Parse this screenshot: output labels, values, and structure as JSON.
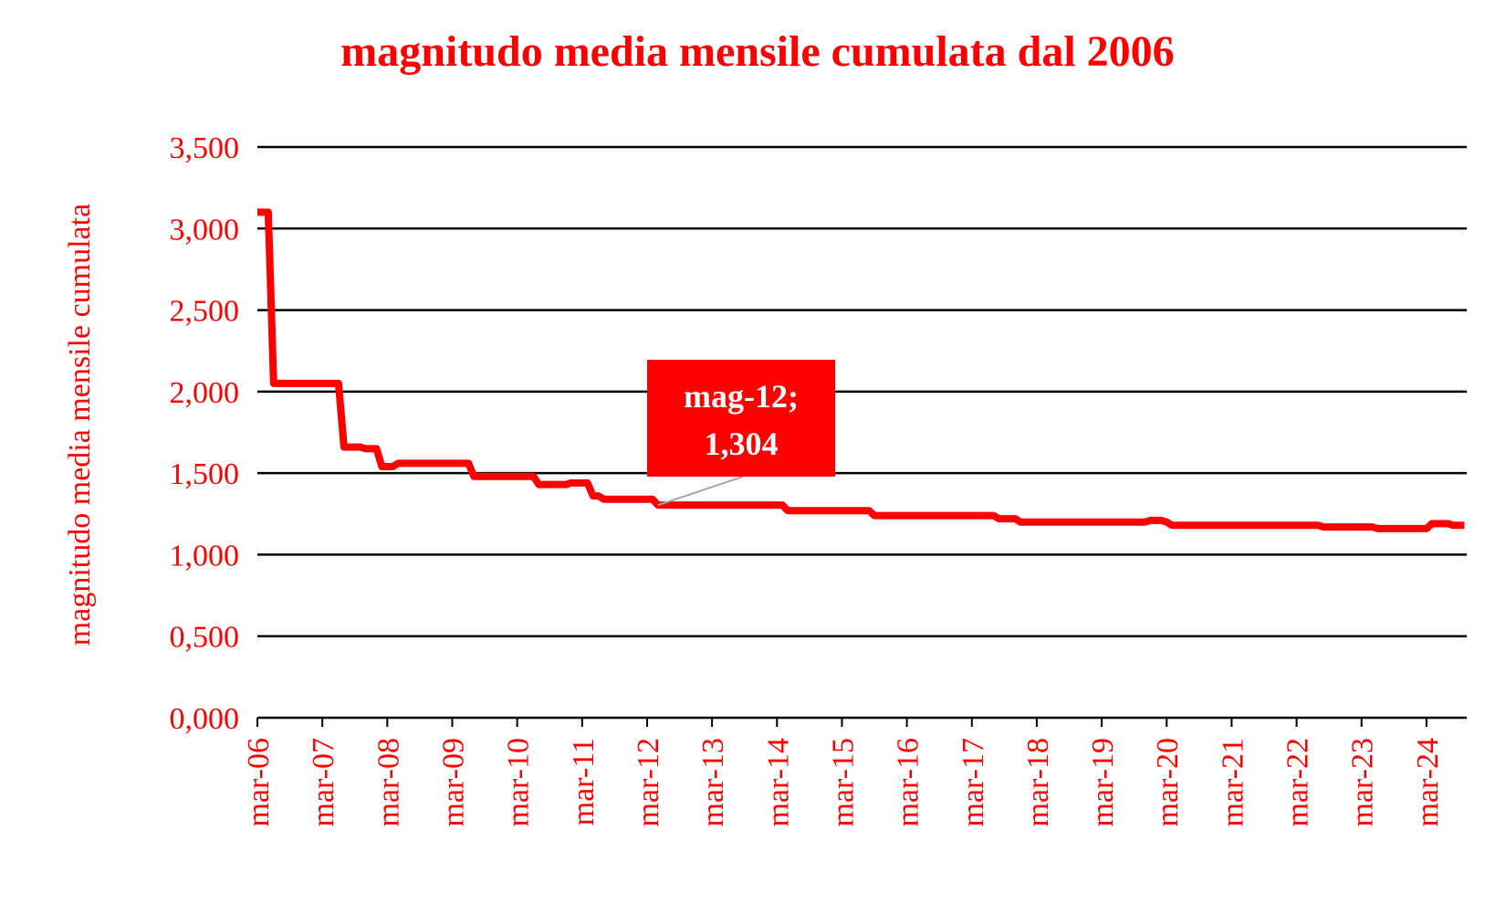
{
  "chart_data": {
    "type": "line",
    "title": "magnitudo media mensile cumulata dal 2006",
    "y_label": "magnitudo media mensile cumulata",
    "color": "#ff0000",
    "grid": true,
    "ylim": [
      0,
      3.5
    ],
    "yticks": [
      {
        "value": 0,
        "label": "0,000"
      },
      {
        "value": 0.5,
        "label": "0,500"
      },
      {
        "value": 1,
        "label": "1,000"
      },
      {
        "value": 1.5,
        "label": "1,500"
      },
      {
        "value": 2,
        "label": "2,000"
      },
      {
        "value": 2.5,
        "label": "2,500"
      },
      {
        "value": 3,
        "label": "3,000"
      },
      {
        "value": 3.5,
        "label": "3,500"
      }
    ],
    "categories": [
      "mar-06",
      null,
      null,
      null,
      null,
      null,
      null,
      null,
      null,
      null,
      null,
      null,
      "mar-07",
      null,
      null,
      null,
      null,
      null,
      null,
      null,
      null,
      null,
      null,
      null,
      "mar-08",
      null,
      null,
      null,
      null,
      null,
      null,
      null,
      null,
      null,
      null,
      null,
      "mar-09",
      null,
      null,
      null,
      null,
      null,
      null,
      null,
      null,
      null,
      null,
      null,
      "mar-10",
      null,
      null,
      null,
      null,
      null,
      null,
      null,
      null,
      null,
      null,
      null,
      "mar-11",
      null,
      null,
      null,
      null,
      null,
      null,
      null,
      null,
      null,
      null,
      null,
      "mar-12",
      null,
      null,
      null,
      null,
      null,
      null,
      null,
      null,
      null,
      null,
      null,
      "mar-13",
      null,
      null,
      null,
      null,
      null,
      null,
      null,
      null,
      null,
      null,
      null,
      "mar-14",
      null,
      null,
      null,
      null,
      null,
      null,
      null,
      null,
      null,
      null,
      null,
      "mar-15",
      null,
      null,
      null,
      null,
      null,
      null,
      null,
      null,
      null,
      null,
      null,
      "mar-16",
      null,
      null,
      null,
      null,
      null,
      null,
      null,
      null,
      null,
      null,
      null,
      "mar-17",
      null,
      null,
      null,
      null,
      null,
      null,
      null,
      null,
      null,
      null,
      null,
      "mar-18",
      null,
      null,
      null,
      null,
      null,
      null,
      null,
      null,
      null,
      null,
      null,
      "mar-19",
      null,
      null,
      null,
      null,
      null,
      null,
      null,
      null,
      null,
      null,
      null,
      "mar-20",
      null,
      null,
      null,
      null,
      null,
      null,
      null,
      null,
      null,
      null,
      null,
      "mar-21",
      null,
      null,
      null,
      null,
      null,
      null,
      null,
      null,
      null,
      null,
      null,
      "mar-22",
      null,
      null,
      null,
      null,
      null,
      null,
      null,
      null,
      null,
      null,
      null,
      "mar-23",
      null,
      null,
      null,
      null,
      null,
      null,
      null,
      null,
      null,
      null,
      null,
      "mar-24",
      null,
      null,
      null,
      null,
      null,
      null,
      null
    ],
    "values": [
      3.1,
      3.1,
      3.1,
      2.05,
      2.05,
      2.05,
      2.05,
      2.05,
      2.05,
      2.05,
      2.05,
      2.05,
      2.05,
      2.05,
      2.05,
      2.05,
      1.66,
      1.66,
      1.66,
      1.66,
      1.65,
      1.65,
      1.65,
      1.54,
      1.54,
      1.54,
      1.56,
      1.56,
      1.56,
      1.56,
      1.56,
      1.56,
      1.56,
      1.56,
      1.56,
      1.56,
      1.56,
      1.56,
      1.56,
      1.56,
      1.48,
      1.48,
      1.48,
      1.48,
      1.48,
      1.48,
      1.48,
      1.48,
      1.48,
      1.48,
      1.48,
      1.48,
      1.43,
      1.43,
      1.43,
      1.43,
      1.43,
      1.43,
      1.44,
      1.44,
      1.44,
      1.44,
      1.36,
      1.36,
      1.34,
      1.34,
      1.34,
      1.34,
      1.34,
      1.34,
      1.34,
      1.34,
      1.34,
      1.34,
      1.304,
      1.304,
      1.304,
      1.304,
      1.304,
      1.304,
      1.304,
      1.304,
      1.304,
      1.304,
      1.304,
      1.304,
      1.304,
      1.304,
      1.304,
      1.304,
      1.304,
      1.304,
      1.304,
      1.304,
      1.304,
      1.304,
      1.304,
      1.304,
      1.27,
      1.27,
      1.27,
      1.27,
      1.27,
      1.27,
      1.27,
      1.27,
      1.27,
      1.27,
      1.27,
      1.27,
      1.27,
      1.27,
      1.27,
      1.27,
      1.24,
      1.24,
      1.24,
      1.24,
      1.24,
      1.24,
      1.24,
      1.24,
      1.24,
      1.24,
      1.24,
      1.24,
      1.24,
      1.24,
      1.24,
      1.24,
      1.24,
      1.24,
      1.24,
      1.24,
      1.24,
      1.24,
      1.24,
      1.22,
      1.22,
      1.22,
      1.22,
      1.2,
      1.2,
      1.2,
      1.2,
      1.2,
      1.2,
      1.2,
      1.2,
      1.2,
      1.2,
      1.2,
      1.2,
      1.2,
      1.2,
      1.2,
      1.2,
      1.2,
      1.2,
      1.2,
      1.2,
      1.2,
      1.2,
      1.2,
      1.2,
      1.21,
      1.21,
      1.21,
      1.2,
      1.18,
      1.18,
      1.18,
      1.18,
      1.18,
      1.18,
      1.18,
      1.18,
      1.18,
      1.18,
      1.18,
      1.18,
      1.18,
      1.18,
      1.18,
      1.18,
      1.18,
      1.18,
      1.18,
      1.18,
      1.18,
      1.18,
      1.18,
      1.18,
      1.18,
      1.18,
      1.18,
      1.18,
      1.17,
      1.17,
      1.17,
      1.17,
      1.17,
      1.17,
      1.17,
      1.17,
      1.17,
      1.17,
      1.16,
      1.16,
      1.16,
      1.16,
      1.16,
      1.16,
      1.16,
      1.16,
      1.16,
      1.16,
      1.19,
      1.19,
      1.19,
      1.19,
      1.18,
      1.18,
      1.18
    ],
    "annotation": {
      "text": "mag-12;",
      "value": 1.304,
      "label": "1,304"
    }
  }
}
